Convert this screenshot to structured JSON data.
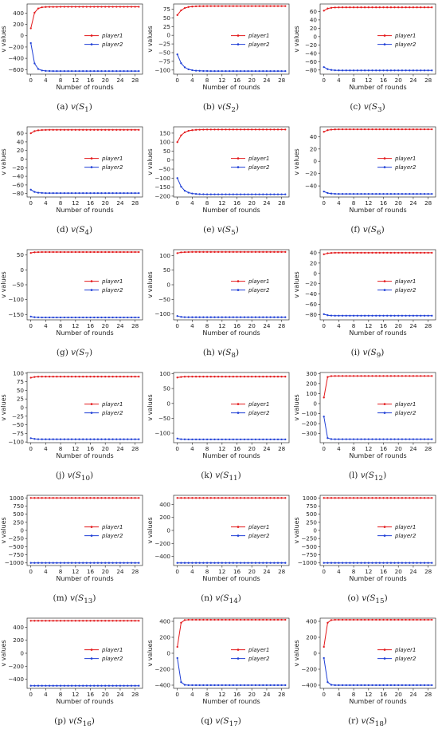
{
  "chart_data": [
    {
      "id": "a",
      "type": "line",
      "caption_letter": "(a)",
      "caption_fn": "v(S",
      "caption_sub": "1",
      "caption_end": ")",
      "xlabel": "Number of rounds",
      "ylabel": "v values",
      "xticks": [
        0,
        4,
        8,
        12,
        16,
        20,
        24,
        28
      ],
      "xlim": [
        -1,
        30
      ],
      "ylim": [
        -680,
        560
      ],
      "yticks": [
        -600,
        -400,
        -200,
        0,
        200,
        400
      ],
      "series": [
        {
          "name": "player1",
          "color": "#e31a1c",
          "start": 130,
          "plateau": 510,
          "rate": 1.3
        },
        {
          "name": "player2",
          "color": "#1f3fd6",
          "start": -130,
          "plateau": -625,
          "rate": 1.3
        }
      ]
    },
    {
      "id": "b",
      "type": "line",
      "caption_letter": "(b)",
      "caption_fn": "v(S",
      "caption_sub": "2",
      "caption_end": ")",
      "xlabel": "Number of rounds",
      "ylabel": "v values",
      "xticks": [
        0,
        4,
        8,
        12,
        16,
        20,
        24,
        28
      ],
      "xlim": [
        -1,
        30
      ],
      "ylim": [
        -112,
        90
      ],
      "yticks": [
        -100,
        -75,
        -50,
        -25,
        0,
        25,
        50,
        75
      ],
      "series": [
        {
          "name": "player1",
          "color": "#e31a1c",
          "start": 58,
          "plateau": 84,
          "rate": 0.75
        },
        {
          "name": "player2",
          "color": "#1f3fd6",
          "start": -55,
          "plateau": -103,
          "rate": 0.75
        }
      ]
    },
    {
      "id": "c",
      "type": "line",
      "caption_letter": "(c)",
      "caption_fn": "v(S",
      "caption_sub": "3",
      "caption_end": ")",
      "xlabel": "Number of rounds",
      "ylabel": "v values",
      "xticks": [
        0,
        4,
        8,
        12,
        16,
        20,
        24,
        28
      ],
      "xlim": [
        -1,
        30
      ],
      "ylim": [
        -90,
        78
      ],
      "yticks": [
        -80,
        -60,
        -40,
        -20,
        0,
        20,
        40,
        60
      ],
      "series": [
        {
          "name": "player1",
          "color": "#e31a1c",
          "start": 62,
          "plateau": 70,
          "rate": 1.0
        },
        {
          "name": "player2",
          "color": "#1f3fd6",
          "start": -73,
          "plateau": -81,
          "rate": 1.0
        }
      ]
    },
    {
      "id": "d",
      "type": "line",
      "caption_letter": "(d)",
      "caption_fn": "v(S",
      "caption_sub": "4",
      "caption_end": ")",
      "xlabel": "Number of rounds",
      "ylabel": "v values",
      "xticks": [
        0,
        4,
        8,
        12,
        16,
        20,
        24,
        28
      ],
      "xlim": [
        -1,
        30
      ],
      "ylim": [
        -88,
        75
      ],
      "yticks": [
        -80,
        -60,
        -40,
        -20,
        0,
        20,
        40,
        60
      ],
      "series": [
        {
          "name": "player1",
          "color": "#e31a1c",
          "start": 60,
          "plateau": 68,
          "rate": 1.0
        },
        {
          "name": "player2",
          "color": "#1f3fd6",
          "start": -71,
          "plateau": -79,
          "rate": 1.0
        }
      ]
    },
    {
      "id": "e",
      "type": "line",
      "caption_letter": "(e)",
      "caption_fn": "v(S",
      "caption_sub": "5",
      "caption_end": ")",
      "xlabel": "Number of rounds",
      "ylabel": "v values",
      "xticks": [
        0,
        4,
        8,
        12,
        16,
        20,
        24,
        28
      ],
      "xlim": [
        -1,
        30
      ],
      "ylim": [
        -205,
        185
      ],
      "yticks": [
        -200,
        -150,
        -100,
        -50,
        0,
        50,
        100,
        150
      ],
      "series": [
        {
          "name": "player1",
          "color": "#e31a1c",
          "start": 100,
          "plateau": 170,
          "rate": 0.75
        },
        {
          "name": "player2",
          "color": "#1f3fd6",
          "start": -100,
          "plateau": -190,
          "rate": 0.75
        }
      ]
    },
    {
      "id": "f",
      "type": "line",
      "caption_letter": "(f)",
      "caption_fn": "v(S",
      "caption_sub": "6",
      "caption_end": ")",
      "xlabel": "Number of rounds",
      "ylabel": "v values",
      "xticks": [
        0,
        4,
        8,
        12,
        16,
        20,
        24,
        28
      ],
      "xlim": [
        -1,
        30
      ],
      "ylim": [
        -58,
        56
      ],
      "yticks": [
        -40,
        -20,
        0,
        20,
        40
      ],
      "series": [
        {
          "name": "player1",
          "color": "#e31a1c",
          "start": 48,
          "plateau": 52,
          "rate": 1.0
        },
        {
          "name": "player2",
          "color": "#1f3fd6",
          "start": -49,
          "plateau": -53,
          "rate": 1.0
        }
      ]
    },
    {
      "id": "g",
      "type": "line",
      "caption_letter": "(g)",
      "caption_fn": "v(S",
      "caption_sub": "7",
      "caption_end": ")",
      "xlabel": "Number of rounds",
      "ylabel": "v values",
      "xticks": [
        0,
        4,
        8,
        12,
        16,
        20,
        24,
        28
      ],
      "xlim": [
        -1,
        30
      ],
      "ylim": [
        -168,
        68
      ],
      "yticks": [
        -150,
        -100,
        -50,
        0,
        50
      ],
      "series": [
        {
          "name": "player1",
          "color": "#e31a1c",
          "start": 57,
          "plateau": 60,
          "rate": 1.2
        },
        {
          "name": "player2",
          "color": "#1f3fd6",
          "start": -157,
          "plateau": -160,
          "rate": 1.2
        }
      ]
    },
    {
      "id": "h",
      "type": "line",
      "caption_letter": "(h)",
      "caption_fn": "v(S",
      "caption_sub": "8",
      "caption_end": ")",
      "xlabel": "Number of rounds",
      "ylabel": "v values",
      "xticks": [
        0,
        4,
        8,
        12,
        16,
        20,
        24,
        28
      ],
      "xlim": [
        -1,
        30
      ],
      "ylim": [
        -120,
        120
      ],
      "yticks": [
        -100,
        -50,
        0,
        50,
        100
      ],
      "series": [
        {
          "name": "player1",
          "color": "#e31a1c",
          "start": 108,
          "plateau": 112,
          "rate": 1.2
        },
        {
          "name": "player2",
          "color": "#1f3fd6",
          "start": -107,
          "plateau": -111,
          "rate": 1.2
        }
      ]
    },
    {
      "id": "i",
      "type": "line",
      "caption_letter": "(i)",
      "caption_fn": "v(S",
      "caption_sub": "9",
      "caption_end": ")",
      "xlabel": "Number of rounds",
      "ylabel": "v values",
      "xticks": [
        0,
        4,
        8,
        12,
        16,
        20,
        24,
        28
      ],
      "xlim": [
        -1,
        30
      ],
      "ylim": [
        -90,
        46
      ],
      "yticks": [
        -80,
        -60,
        -40,
        -20,
        0,
        20,
        40
      ],
      "series": [
        {
          "name": "player1",
          "color": "#e31a1c",
          "start": 37,
          "plateau": 40,
          "rate": 1.2
        },
        {
          "name": "player2",
          "color": "#1f3fd6",
          "start": -79,
          "plateau": -82,
          "rate": 1.2
        }
      ]
    },
    {
      "id": "j",
      "type": "line",
      "caption_letter": "(j)",
      "caption_fn": "v(S",
      "caption_sub": "10",
      "caption_end": ")",
      "xlabel": "Number of rounds",
      "ylabel": "v values",
      "xticks": [
        0,
        4,
        8,
        12,
        16,
        20,
        24,
        28
      ],
      "xlim": [
        -1,
        30
      ],
      "ylim": [
        -102,
        102
      ],
      "yticks": [
        -100,
        -75,
        -50,
        -25,
        0,
        25,
        50,
        75,
        100
      ],
      "series": [
        {
          "name": "player1",
          "color": "#e31a1c",
          "start": 87,
          "plateau": 90,
          "rate": 1.2
        },
        {
          "name": "player2",
          "color": "#1f3fd6",
          "start": -89,
          "plateau": -92,
          "rate": 1.2
        }
      ]
    },
    {
      "id": "k",
      "type": "line",
      "caption_letter": "(k)",
      "caption_fn": "v(S",
      "caption_sub": "11",
      "caption_end": ")",
      "xlabel": "Number of rounds",
      "ylabel": "v values",
      "xticks": [
        0,
        4,
        8,
        12,
        16,
        20,
        24,
        28
      ],
      "xlim": [
        -1,
        30
      ],
      "ylim": [
        -132,
        104
      ],
      "yticks": [
        -100,
        -50,
        0,
        50,
        100
      ],
      "series": [
        {
          "name": "player1",
          "color": "#e31a1c",
          "start": 87,
          "plateau": 90,
          "rate": 1.2
        },
        {
          "name": "player2",
          "color": "#1f3fd6",
          "start": -118,
          "plateau": -121,
          "rate": 1.2
        }
      ]
    },
    {
      "id": "l",
      "type": "line",
      "caption_letter": "(l)",
      "caption_fn": "v(S",
      "caption_sub": "12",
      "caption_end": ")",
      "xlabel": "Number of rounds",
      "ylabel": "v values",
      "xticks": [
        0,
        4,
        8,
        12,
        16,
        20,
        24,
        28
      ],
      "xlim": [
        -1,
        30
      ],
      "ylim": [
        -390,
        310
      ],
      "yticks": [
        -300,
        -200,
        -100,
        0,
        100,
        200,
        300
      ],
      "series": [
        {
          "name": "player1",
          "color": "#e31a1c",
          "start": 60,
          "plateau": 275,
          "rate": 3.0
        },
        {
          "name": "player2",
          "color": "#1f3fd6",
          "start": -130,
          "plateau": -355,
          "rate": 3.0
        }
      ]
    },
    {
      "id": "m",
      "type": "line",
      "caption_letter": "(m)",
      "caption_fn": "v(S",
      "caption_sub": "13",
      "caption_end": ")",
      "xlabel": "Number of rounds",
      "ylabel": "v values",
      "xticks": [
        0,
        4,
        8,
        12,
        16,
        20,
        24,
        28
      ],
      "xlim": [
        -1,
        30
      ],
      "ylim": [
        -1080,
        1080
      ],
      "yticks": [
        -1000,
        -750,
        -500,
        -250,
        0,
        250,
        500,
        750,
        1000
      ],
      "series": [
        {
          "name": "player1",
          "color": "#e31a1c",
          "start": 1000,
          "plateau": 1000,
          "rate": 1.0
        },
        {
          "name": "player2",
          "color": "#1f3fd6",
          "start": -1000,
          "plateau": -1000,
          "rate": 1.0
        }
      ]
    },
    {
      "id": "n",
      "type": "line",
      "caption_letter": "(n)",
      "caption_fn": "v(S",
      "caption_sub": "14",
      "caption_end": ")",
      "xlabel": "Number of rounds",
      "ylabel": "v values",
      "xticks": [
        0,
        4,
        8,
        12,
        16,
        20,
        24,
        28
      ],
      "xlim": [
        -1,
        30
      ],
      "ylim": [
        -540,
        540
      ],
      "yticks": [
        -400,
        -200,
        0,
        200,
        400
      ],
      "series": [
        {
          "name": "player1",
          "color": "#e31a1c",
          "start": 500,
          "plateau": 500,
          "rate": 1.0
        },
        {
          "name": "player2",
          "color": "#1f3fd6",
          "start": -500,
          "plateau": -500,
          "rate": 1.0
        }
      ]
    },
    {
      "id": "o",
      "type": "line",
      "caption_letter": "(o)",
      "caption_fn": "v(S",
      "caption_sub": "15",
      "caption_end": ")",
      "xlabel": "Number of rounds",
      "ylabel": "v values",
      "xticks": [
        0,
        4,
        8,
        12,
        16,
        20,
        24,
        28
      ],
      "xlim": [
        -1,
        30
      ],
      "ylim": [
        -1080,
        1080
      ],
      "yticks": [
        -1000,
        -750,
        -500,
        -250,
        0,
        250,
        500,
        750,
        1000
      ],
      "series": [
        {
          "name": "player1",
          "color": "#e31a1c",
          "start": 1000,
          "plateau": 1000,
          "rate": 1.0
        },
        {
          "name": "player2",
          "color": "#1f3fd6",
          "start": -1000,
          "plateau": -1000,
          "rate": 1.0
        }
      ]
    },
    {
      "id": "p",
      "type": "line",
      "caption_letter": "(p)",
      "caption_fn": "v(S",
      "caption_sub": "16",
      "caption_end": ")",
      "xlabel": "Number of rounds",
      "ylabel": "v values",
      "xticks": [
        0,
        4,
        8,
        12,
        16,
        20,
        24,
        28
      ],
      "xlim": [
        -1,
        30
      ],
      "ylim": [
        -540,
        540
      ],
      "yticks": [
        -400,
        -200,
        0,
        200,
        400
      ],
      "series": [
        {
          "name": "player1",
          "color": "#e31a1c",
          "start": 500,
          "plateau": 500,
          "rate": 1.0
        },
        {
          "name": "player2",
          "color": "#1f3fd6",
          "start": -500,
          "plateau": -500,
          "rate": 1.0
        }
      ]
    },
    {
      "id": "q",
      "type": "line",
      "caption_letter": "(q)",
      "caption_fn": "v(S",
      "caption_sub": "17",
      "caption_end": ")",
      "xlabel": "Number of rounds",
      "ylabel": "v values",
      "xticks": [
        0,
        4,
        8,
        12,
        16,
        20,
        24,
        28
      ],
      "xlim": [
        -1,
        30
      ],
      "ylim": [
        -440,
        440
      ],
      "yticks": [
        -400,
        -200,
        0,
        200,
        400
      ],
      "series": [
        {
          "name": "player1",
          "color": "#e31a1c",
          "start": 80,
          "plateau": 420,
          "rate": 2.2
        },
        {
          "name": "player2",
          "color": "#1f3fd6",
          "start": -60,
          "plateau": -400,
          "rate": 2.2
        }
      ]
    },
    {
      "id": "r",
      "type": "line",
      "caption_letter": "(r)",
      "caption_fn": "v(S",
      "caption_sub": "18",
      "caption_end": ")",
      "xlabel": "Number of rounds",
      "ylabel": "v values",
      "xticks": [
        0,
        4,
        8,
        12,
        16,
        20,
        24,
        28
      ],
      "xlim": [
        -1,
        30
      ],
      "ylim": [
        -440,
        440
      ],
      "yticks": [
        -400,
        -200,
        0,
        200,
        400
      ],
      "series": [
        {
          "name": "player1",
          "color": "#e31a1c",
          "start": 80,
          "plateau": 420,
          "rate": 2.2
        },
        {
          "name": "player2",
          "color": "#1f3fd6",
          "start": -60,
          "plateau": -400,
          "rate": 2.2
        }
      ]
    }
  ]
}
